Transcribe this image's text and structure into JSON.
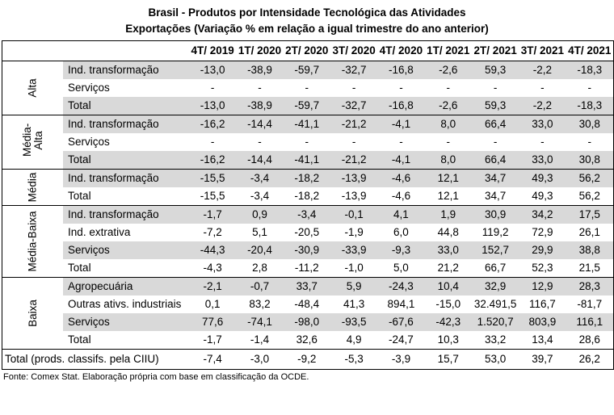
{
  "title_line1": "Brasil - Produtos por Intensidade Tecnológica das Atividades",
  "title_line2": "Exportações (Variação % em relação a igual trimestre do ano anterior)",
  "columns": [
    "4T/ 2019",
    "1T/ 2020",
    "2T/ 2020",
    "3T/ 2020",
    "4T/ 2020",
    "1T/ 2021",
    "2T/ 2021",
    "3T/ 2021",
    "4T/ 2021"
  ],
  "groups": [
    {
      "category": "Alta",
      "rows": [
        {
          "label": "Ind. transformação",
          "values": [
            "-13,0",
            "-38,9",
            "-59,7",
            "-32,7",
            "-16,8",
            "-2,6",
            "59,3",
            "-2,2",
            "-18,3"
          ]
        },
        {
          "label": "Serviços",
          "values": [
            "-",
            "-",
            "-",
            "-",
            "-",
            "-",
            "-",
            "-",
            "-"
          ]
        },
        {
          "label": "Total",
          "values": [
            "-13,0",
            "-38,9",
            "-59,7",
            "-32,7",
            "-16,8",
            "-2,6",
            "59,3",
            "-2,2",
            "-18,3"
          ]
        }
      ]
    },
    {
      "category": "Média-Alta",
      "rows": [
        {
          "label": "Ind. transformação",
          "values": [
            "-16,2",
            "-14,4",
            "-41,1",
            "-21,2",
            "-4,1",
            "8,0",
            "66,4",
            "33,0",
            "30,8"
          ]
        },
        {
          "label": "Serviços",
          "values": [
            "-",
            "-",
            "-",
            "-",
            "-",
            "-",
            "-",
            "-",
            "-"
          ]
        },
        {
          "label": "Total",
          "values": [
            "-16,2",
            "-14,4",
            "-41,1",
            "-21,2",
            "-4,1",
            "8,0",
            "66,4",
            "33,0",
            "30,8"
          ]
        }
      ]
    },
    {
      "category": "Média",
      "rows": [
        {
          "label": "Ind. transformação",
          "values": [
            "-15,5",
            "-3,4",
            "-18,2",
            "-13,9",
            "-4,6",
            "12,1",
            "34,7",
            "49,3",
            "56,2"
          ]
        },
        {
          "label": "Total",
          "values": [
            "-15,5",
            "-3,4",
            "-18,2",
            "-13,9",
            "-4,6",
            "12,1",
            "34,7",
            "49,3",
            "56,2"
          ]
        }
      ]
    },
    {
      "category": "Média-Baixa",
      "rows": [
        {
          "label": "Ind. transformação",
          "values": [
            "-1,7",
            "0,9",
            "-3,4",
            "-0,1",
            "4,1",
            "1,9",
            "30,9",
            "34,2",
            "17,5"
          ]
        },
        {
          "label": "Ind. extrativa",
          "values": [
            "-7,2",
            "5,1",
            "-20,5",
            "-1,9",
            "6,0",
            "44,8",
            "119,2",
            "72,9",
            "26,1"
          ]
        },
        {
          "label": "Serviços",
          "values": [
            "-44,3",
            "-20,4",
            "-30,9",
            "-33,9",
            "-9,3",
            "33,0",
            "152,7",
            "29,9",
            "38,8"
          ]
        },
        {
          "label": "Total",
          "values": [
            "-4,3",
            "2,8",
            "-11,2",
            "-1,0",
            "5,0",
            "21,2",
            "66,7",
            "52,3",
            "21,5"
          ]
        }
      ]
    },
    {
      "category": "Baixa",
      "rows": [
        {
          "label": "Agropecuária",
          "values": [
            "-2,1",
            "-0,7",
            "33,7",
            "5,9",
            "-24,3",
            "10,4",
            "32,9",
            "12,9",
            "28,3"
          ]
        },
        {
          "label": "Outras ativs. industriais",
          "values": [
            "0,1",
            "83,2",
            "-48,4",
            "41,3",
            "894,1",
            "-15,0",
            "32.491,5",
            "116,7",
            "-81,7"
          ]
        },
        {
          "label": "Serviços",
          "values": [
            "77,6",
            "-74,1",
            "-98,0",
            "-93,5",
            "-67,6",
            "-42,3",
            "1.520,7",
            "803,9",
            "116,1"
          ]
        },
        {
          "label": "Total",
          "values": [
            "-1,7",
            "-1,4",
            "32,6",
            "4,9",
            "-24,7",
            "10,3",
            "33,2",
            "13,4",
            "28,6"
          ]
        }
      ]
    }
  ],
  "grand_total": {
    "label": "Total (prods. classifs. pela CIIU)",
    "values": [
      "-7,4",
      "-3,0",
      "-9,2",
      "-5,3",
      "-3,9",
      "15,7",
      "53,0",
      "39,7",
      "26,2"
    ]
  },
  "source": "Fonte: Comex Stat. Elaboração própria com base em classificação da OCDE."
}
